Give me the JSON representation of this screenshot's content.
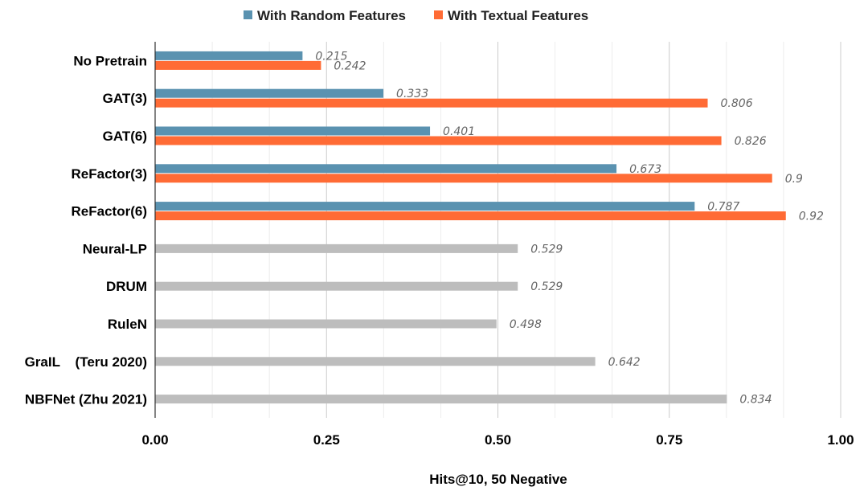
{
  "chart_data": {
    "type": "bar",
    "orientation": "horizontal",
    "title": "",
    "xlabel": "Hits@10, 50 Negative",
    "ylabel": "",
    "xlim": [
      0,
      1
    ],
    "x_ticks": [
      "0.00",
      "0.25",
      "0.50",
      "0.75",
      "1.00"
    ],
    "grid": "vertical",
    "legend_position": "top-center",
    "categories": [
      "No Pretrain",
      "GAT(3)",
      "GAT(6)",
      "ReFactor(3)",
      "ReFactor(6)",
      "Neural-LP",
      "DRUM",
      "RuleN",
      "GraIL    (Teru 2020)",
      "NBFNet (Zhu 2021)"
    ],
    "series": [
      {
        "name": "With Random Features",
        "color": "#5a92b0",
        "values": [
          0.215,
          0.333,
          0.401,
          0.673,
          0.787,
          null,
          null,
          null,
          null,
          null
        ]
      },
      {
        "name": "With Textual Features",
        "color": "#ff6b35",
        "values": [
          0.242,
          0.806,
          0.826,
          0.9,
          0.92,
          null,
          null,
          null,
          null,
          null
        ]
      },
      {
        "name": "",
        "color": "#bdbdbd",
        "values": [
          null,
          null,
          null,
          null,
          null,
          0.529,
          0.529,
          0.498,
          0.642,
          0.834
        ]
      }
    ],
    "data_labels": [
      [
        "0.215",
        "0.333",
        "0.401",
        "0.673",
        "0.787",
        "",
        "",
        "",
        "",
        ""
      ],
      [
        "0.242",
        "0.806",
        "0.826",
        "0.9",
        "0.92",
        "",
        "",
        "",
        "",
        ""
      ],
      [
        "",
        "",
        "",
        "",
        "",
        "0.529",
        "0.529",
        "0.498",
        "0.642",
        "0.834"
      ]
    ]
  }
}
